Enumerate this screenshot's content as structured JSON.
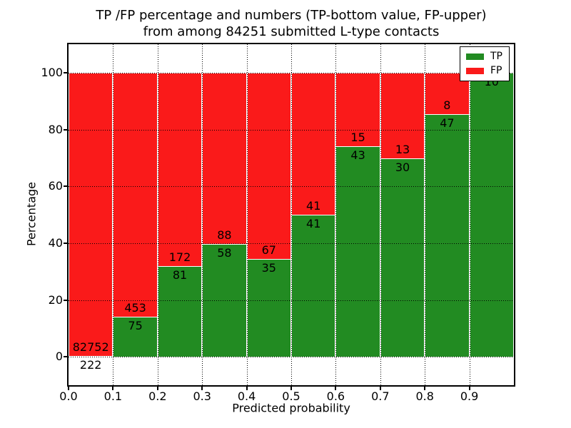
{
  "chart_data": {
    "type": "bar",
    "stacked": true,
    "title_line1": "TP /FP percentage and numbers (TP-bottom value, FP-upper)",
    "title_line2": "from among 84251 submitted L-type contacts",
    "total_contacts": 84251,
    "xlabel": "Predicted probability",
    "ylabel": "Percentage",
    "x_tick_labels": [
      "0.0",
      "0.1",
      "0.2",
      "0.3",
      "0.4",
      "0.5",
      "0.6",
      "0.7",
      "0.8",
      "0.9"
    ],
    "y_ticks": [
      0,
      20,
      40,
      60,
      80,
      100
    ],
    "y_tick_labels": [
      "0",
      "20",
      "40",
      "60",
      "80",
      "100"
    ],
    "xlim": [
      0.0,
      1.0
    ],
    "ylim": [
      -10,
      110
    ],
    "bin_width": 0.1,
    "grid": "dotted",
    "legend": {
      "position": "upper right",
      "items": [
        {
          "label": "TP",
          "color": "#228b22"
        },
        {
          "label": "FP",
          "color": "#fa1a1a"
        }
      ]
    },
    "colors": {
      "tp": "#228b22",
      "fp": "#fa1a1a",
      "grid": "#000000",
      "background": "#ffffff"
    },
    "bins": [
      {
        "x_start": 0.0,
        "x_end": 0.1,
        "tp": 222,
        "fp": 82752,
        "tp_pct": 0.27
      },
      {
        "x_start": 0.1,
        "x_end": 0.2,
        "tp": 75,
        "fp": 453,
        "tp_pct": 14.2
      },
      {
        "x_start": 0.2,
        "x_end": 0.3,
        "tp": 81,
        "fp": 172,
        "tp_pct": 32.02
      },
      {
        "x_start": 0.3,
        "x_end": 0.4,
        "tp": 58,
        "fp": 88,
        "tp_pct": 39.73
      },
      {
        "x_start": 0.4,
        "x_end": 0.5,
        "tp": 35,
        "fp": 67,
        "tp_pct": 34.31
      },
      {
        "x_start": 0.5,
        "x_end": 0.6,
        "tp": 41,
        "fp": 41,
        "tp_pct": 50.0
      },
      {
        "x_start": 0.6,
        "x_end": 0.7,
        "tp": 43,
        "fp": 15,
        "tp_pct": 74.14
      },
      {
        "x_start": 0.7,
        "x_end": 0.8,
        "tp": 30,
        "fp": 13,
        "tp_pct": 69.77
      },
      {
        "x_start": 0.8,
        "x_end": 0.9,
        "tp": 47,
        "fp": 8,
        "tp_pct": 85.45
      },
      {
        "x_start": 0.9,
        "x_end": 1.0,
        "tp": 10,
        "fp": 0,
        "tp_pct": 100.0
      }
    ]
  }
}
